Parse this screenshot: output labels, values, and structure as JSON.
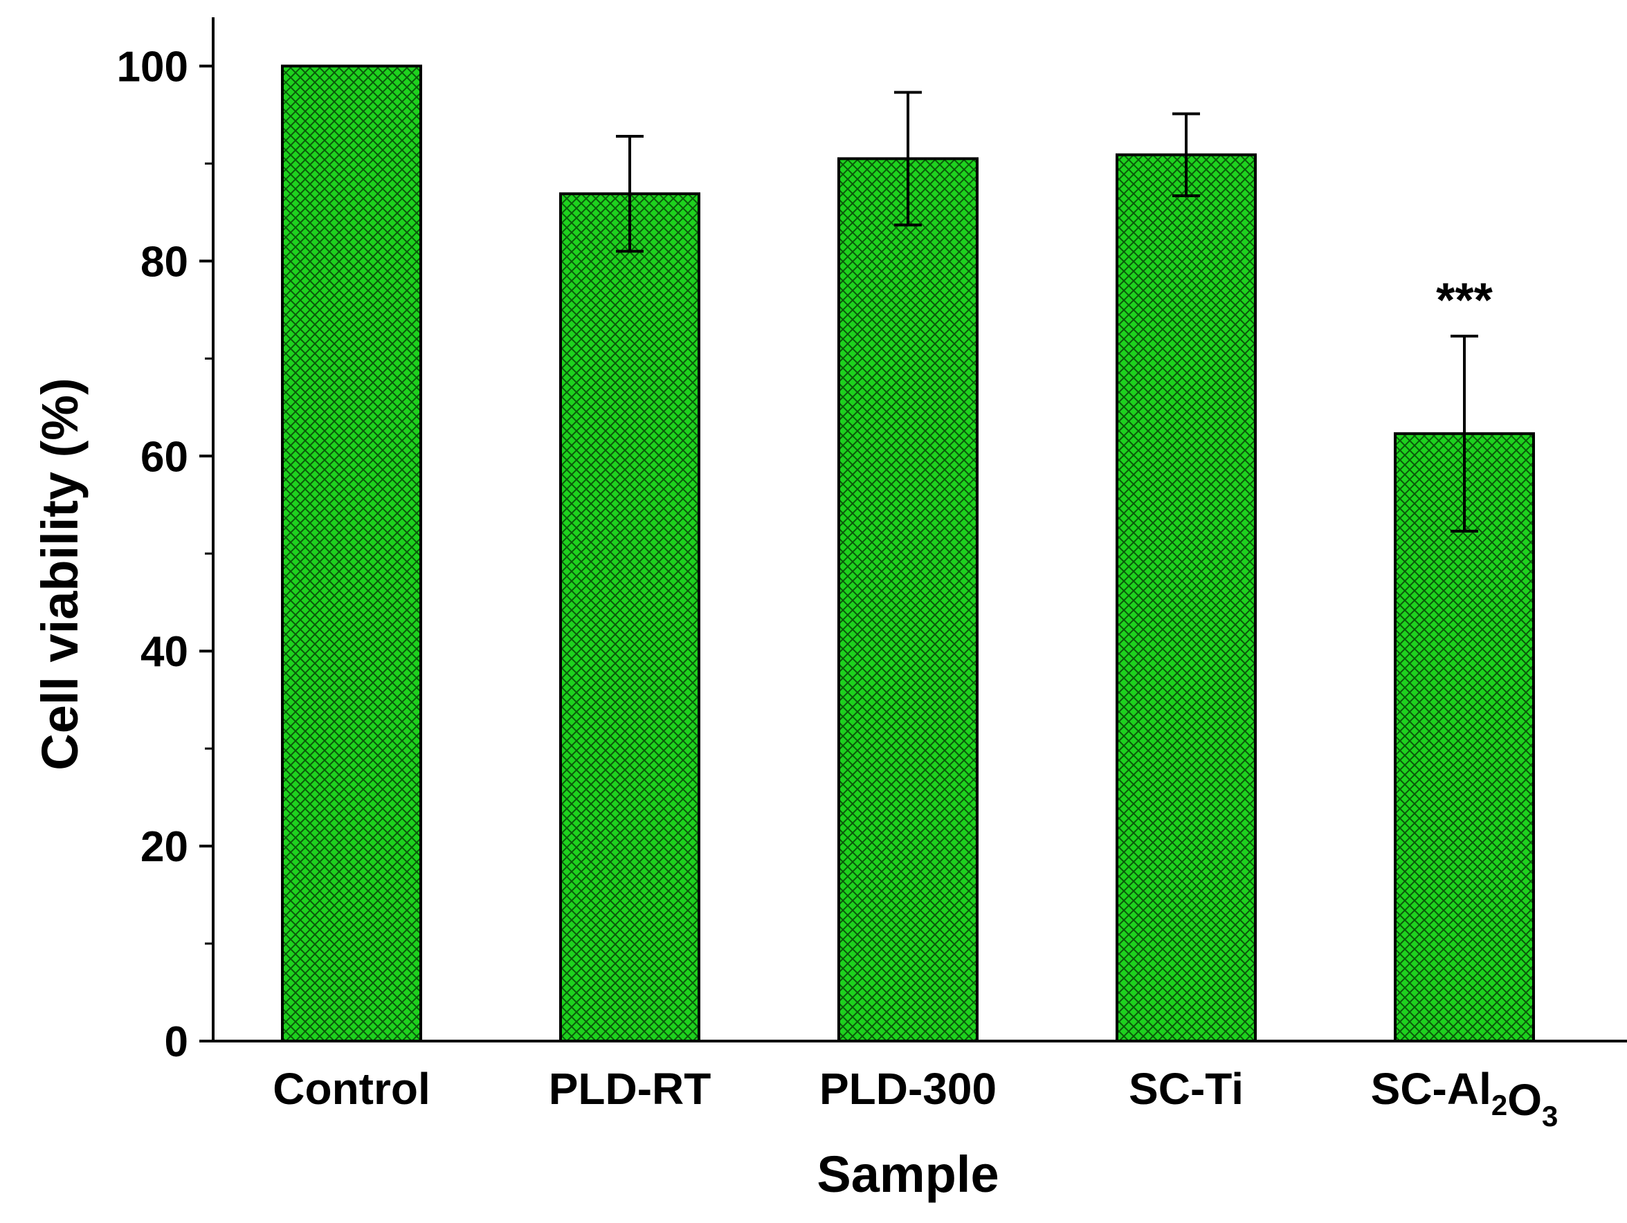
{
  "chart_data": {
    "type": "bar",
    "title": "",
    "xlabel": "Sample",
    "ylabel": "Cell viability (%)",
    "ylim": [
      0,
      105
    ],
    "yticks": [
      0,
      20,
      40,
      60,
      80,
      100
    ],
    "yticks_minor": [
      10,
      30,
      50,
      70,
      90
    ],
    "tick_labels": [
      "0",
      "20",
      "40",
      "60",
      "80",
      "100"
    ],
    "categories": [
      {
        "base": "Control",
        "parts": [
          [
            "Control",
            ""
          ]
        ]
      },
      {
        "base": "PLD-RT",
        "parts": [
          [
            "PLD-RT",
            ""
          ]
        ]
      },
      {
        "base": "PLD-300",
        "parts": [
          [
            "PLD-300",
            ""
          ]
        ]
      },
      {
        "base": "SC-Ti",
        "parts": [
          [
            "SC-Ti",
            ""
          ]
        ]
      },
      {
        "base": "SC-Al2O3",
        "parts": [
          [
            "SC-Al",
            "2"
          ],
          [
            "O",
            "3"
          ]
        ]
      }
    ],
    "values": [
      100,
      86.9,
      90.5,
      90.9,
      62.3
    ],
    "errors": [
      null,
      5.9,
      6.8,
      4.2,
      10.0
    ],
    "annotations": [
      {
        "category_index": 4,
        "text": "***",
        "y": 77
      }
    ],
    "grid": false,
    "legend": "none"
  },
  "colors": {
    "bar_fill": "#1ed21e",
    "bar_hatch": "#0a5a0a",
    "bar_edge": "#000000",
    "axis": "#000000",
    "background": "#ffffff"
  }
}
